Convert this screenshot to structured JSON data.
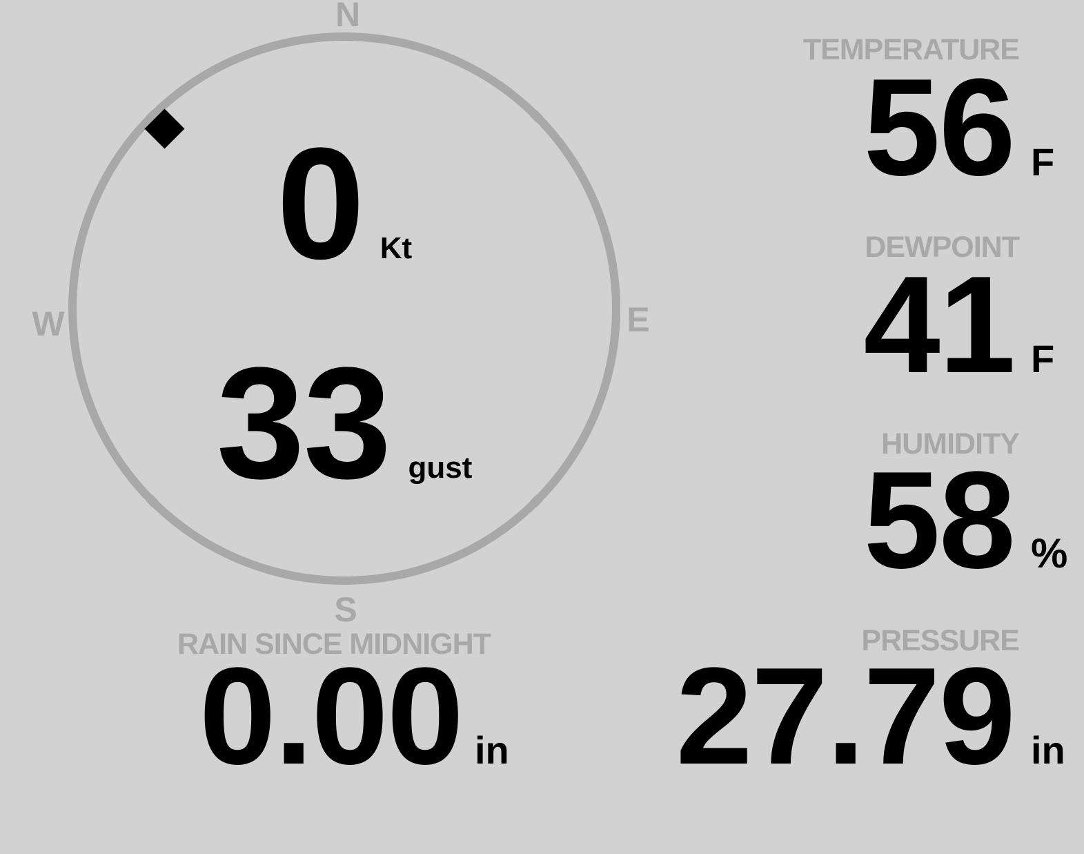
{
  "colors": {
    "background": "#d2d2d2",
    "muted_gray": "#a8a8a8",
    "foreground": "#000000"
  },
  "wind": {
    "speed": "0",
    "speed_unit": "Kt",
    "gust": "33",
    "gust_unit": "gust",
    "direction_deg": 315,
    "compass": {
      "n": "N",
      "e": "E",
      "s": "S",
      "w": "W"
    }
  },
  "readouts": {
    "temperature": {
      "label": "TEMPERATURE",
      "value": "56",
      "unit": "F"
    },
    "dewpoint": {
      "label": "DEWPOINT",
      "value": "41",
      "unit": "F"
    },
    "humidity": {
      "label": "HUMIDITY",
      "value": "58",
      "unit": "%"
    },
    "rain": {
      "label": "RAIN SINCE MIDNIGHT",
      "value": "0.00",
      "unit": "in"
    },
    "pressure": {
      "label": "PRESSURE",
      "value": "27.79",
      "unit": "in"
    }
  }
}
